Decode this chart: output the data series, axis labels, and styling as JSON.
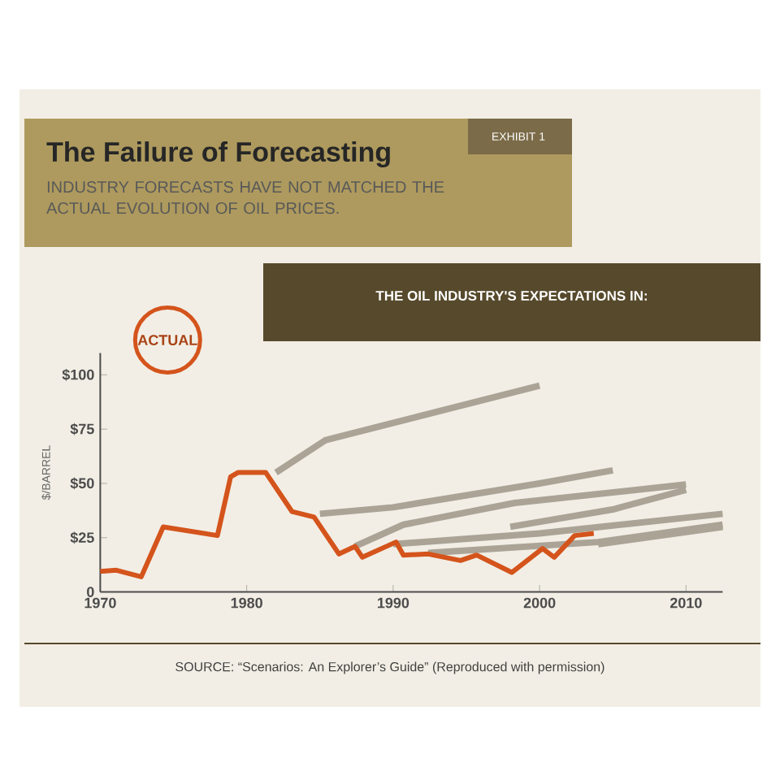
{
  "chart_data": {
    "type": "line",
    "title": "The Failure of Forecasting",
    "subtitle": "INDUSTRY FORECASTS HAVE NOT MATCHED THE ACTUAL EVOLUTION OF OIL PRICES.",
    "ylabel": "$/BARREL",
    "annotations": [
      "EXHIBIT 1",
      "THE OIL INDUSTRY'S EXPECTATIONS IN:",
      "SOURCE: “Scenarios: An Explorer’s Guide” (Reproduced with permission)"
    ],
    "xlim": [
      1970,
      2012.5
    ],
    "xticks": [
      1970,
      1980,
      1990,
      2000,
      2010
    ],
    "ylim": [
      0,
      110
    ],
    "yticks": [
      {
        "value": 0,
        "label": "0"
      },
      {
        "value": 25,
        "label": "$25"
      },
      {
        "value": 50,
        "label": "$50"
      },
      {
        "value": 75,
        "label": "$75"
      },
      {
        "value": 100,
        "label": "$100"
      }
    ],
    "grid": false,
    "legend": "top left",
    "marker": "none",
    "line_style": "solid",
    "series": [
      {
        "color": "#aaa396",
        "x": [
          1982,
          1985.4,
          2000
        ],
        "values": [
          55,
          70,
          95
        ]
      },
      {
        "color": "#aaa396",
        "x": [
          1985,
          1990,
          2000,
          2005
        ],
        "values": [
          36,
          39,
          50,
          56
        ]
      },
      {
        "color": "#aaa396",
        "x": [
          1987.4,
          1990.7,
          1998.3,
          2010
        ],
        "values": [
          21,
          31,
          41,
          49.5
        ]
      },
      {
        "color": "#aaa396",
        "x": [
          1998,
          2005,
          2010
        ],
        "values": [
          30,
          38,
          47
        ]
      },
      {
        "color": "#aaa396",
        "x": [
          1990,
          2000,
          2012.5
        ],
        "values": [
          22,
          27,
          36
        ]
      },
      {
        "color": "#aaa396",
        "x": [
          1992.4,
          2004,
          2012.5
        ],
        "values": [
          18,
          23,
          31
        ]
      },
      {
        "color": "#aaa396",
        "x": [
          2004,
          2012.5
        ],
        "values": [
          22,
          30
        ]
      },
      {
        "name": "ACTUAL",
        "color": "#d4541c",
        "x": [
          1970,
          1971.1,
          1972.8,
          1974.3,
          1978,
          1978.9,
          1979.4,
          1981.3,
          1983.1,
          1984.6,
          1986.3,
          1987.4,
          1987.9,
          1990.2,
          1990.7,
          1992.4,
          1994.6,
          1995.7,
          1998.1,
          2000.2,
          2001,
          2002.4,
          2003.7
        ],
        "values": [
          9.5,
          10,
          7,
          30,
          26,
          53,
          55,
          55,
          37,
          34.5,
          17.5,
          21,
          16,
          23,
          17,
          17.5,
          14.5,
          17,
          9,
          20,
          16,
          26,
          27
        ]
      }
    ]
  }
}
